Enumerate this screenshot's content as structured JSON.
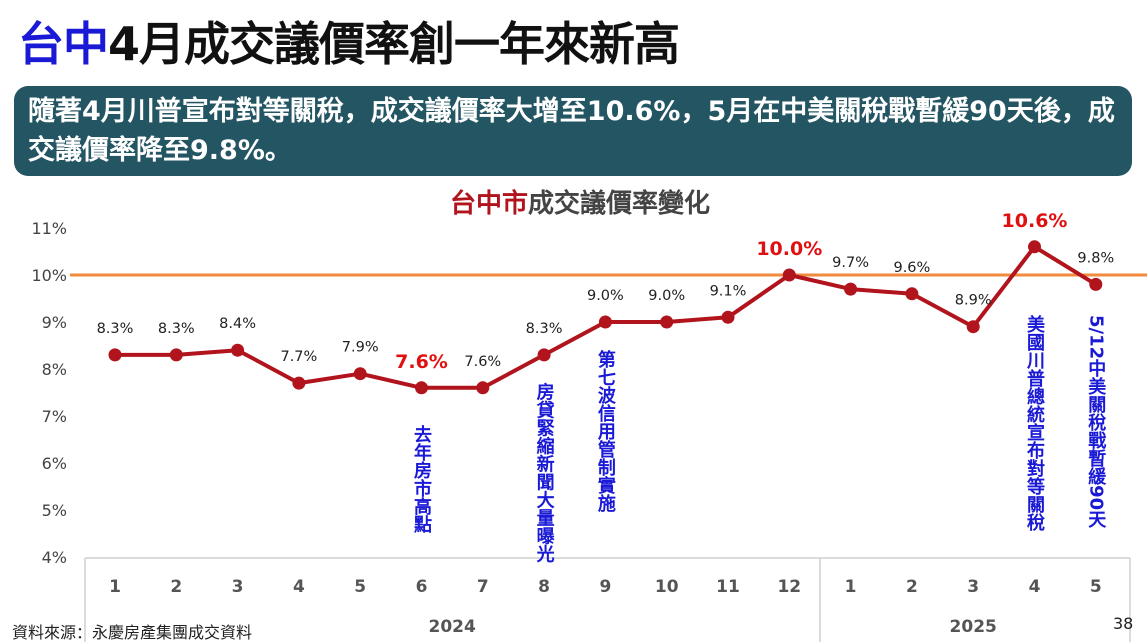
{
  "slide": {
    "title_accent": "台中",
    "title_rest": "4月成交議價率創一年來新高",
    "banner": "隨著4月川普宣布對等關稅，成交議價率大增至10.6%，5月在中美關稅戰暫緩90天後，成交議價率降至9.8%。",
    "source": "資料來源：永慶房產集團成交資料",
    "page_number": "38"
  },
  "colors": {
    "line": "#b1141c",
    "reference_line": "#f08a3c",
    "annotation": "#1a1ad6",
    "highlight_label": "#e01010",
    "banner_bg": "#245563"
  },
  "chart_data": {
    "type": "line",
    "title_accent": "台中市",
    "title_rest": "成交議價率變化",
    "categories": [
      "1",
      "2",
      "3",
      "4",
      "5",
      "6",
      "7",
      "8",
      "9",
      "10",
      "11",
      "12",
      "1",
      "2",
      "3",
      "4",
      "5"
    ],
    "year_groups": [
      {
        "label": "2024",
        "start": 0,
        "end": 11
      },
      {
        "label": "2025",
        "start": 12,
        "end": 16
      }
    ],
    "values": [
      8.3,
      8.3,
      8.4,
      7.7,
      7.9,
      7.6,
      7.6,
      8.3,
      9.0,
      9.0,
      9.1,
      10.0,
      9.7,
      9.6,
      8.9,
      10.6,
      9.8
    ],
    "labels": [
      "8.3%",
      "8.3%",
      "8.4%",
      "7.7%",
      "7.9%",
      "7.6%",
      "7.6%",
      "8.3%",
      "9.0%",
      "9.0%",
      "9.1%",
      "10.0%",
      "9.7%",
      "9.6%",
      "8.9%",
      "10.6%",
      "9.8%"
    ],
    "highlight_indices": [
      5,
      11,
      15
    ],
    "ylim": [
      4,
      11
    ],
    "yticks": [
      "4%",
      "5%",
      "6%",
      "7%",
      "8%",
      "9%",
      "10%",
      "11%"
    ],
    "reference_value": 10,
    "annotations": [
      {
        "index": 5,
        "text": "去年房市高點"
      },
      {
        "index": 7,
        "text": "房貸緊縮新聞大量曝光"
      },
      {
        "index": 8,
        "text": "第七波信用管制實施"
      },
      {
        "index": 15,
        "text": "美國川普總統宣布對等關稅"
      },
      {
        "index": 16,
        "text": "5/12中美關稅戰暫緩90天"
      }
    ],
    "grid": false
  }
}
